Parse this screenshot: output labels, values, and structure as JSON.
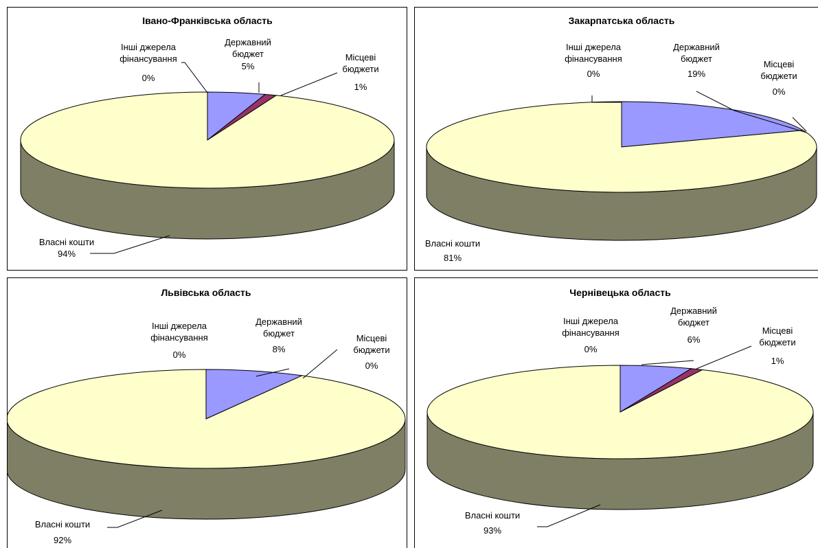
{
  "chart_data": [
    {
      "type": "pie",
      "title": "Івано-Франківська область",
      "slices": [
        {
          "name": "Державний бюджет",
          "value": 5,
          "label": "5%"
        },
        {
          "name": "Місцеві бюджети",
          "value": 1,
          "label": "1%"
        },
        {
          "name": "Власні кошти",
          "value": 94,
          "label": "94%"
        },
        {
          "name": "Інші джерела фінансування",
          "value": 0,
          "label": "0%"
        }
      ]
    },
    {
      "type": "pie",
      "title": "Закарпатська область",
      "slices": [
        {
          "name": "Державний бюджет",
          "value": 19,
          "label": "19%"
        },
        {
          "name": "Місцеві бюджети",
          "value": 0,
          "label": "0%"
        },
        {
          "name": "Власні кошти",
          "value": 81,
          "label": "81%"
        },
        {
          "name": "Інші джерела фінансування",
          "value": 0,
          "label": "0%"
        }
      ]
    },
    {
      "type": "pie",
      "title": "Львівська область",
      "slices": [
        {
          "name": "Державний бюджет",
          "value": 8,
          "label": "8%"
        },
        {
          "name": "Місцеві бюджети",
          "value": 0,
          "label": "0%"
        },
        {
          "name": "Власні кошти",
          "value": 92,
          "label": "92%"
        },
        {
          "name": "Інші джерела фінансування",
          "value": 0,
          "label": "0%"
        }
      ]
    },
    {
      "type": "pie",
      "title": "Чернівецька область",
      "slices": [
        {
          "name": "Державний бюджет",
          "value": 6,
          "label": "6%"
        },
        {
          "name": "Місцеві бюджети",
          "value": 1,
          "label": "1%"
        },
        {
          "name": "Власні кошти",
          "value": 93,
          "label": "93%"
        },
        {
          "name": "Інші джерела фінансування",
          "value": 0,
          "label": "0%"
        }
      ]
    }
  ],
  "colors": {
    "state_budget": "#9999FF",
    "local_budgets": "#993366",
    "own_funds": "#FFFFCC",
    "own_funds_side": "#7F7F66",
    "other_sources": "#CCFFFF"
  },
  "labels": {
    "state_budget": [
      "Державний",
      "бюджет"
    ],
    "local_budgets": [
      "Місцеві",
      "бюджети"
    ],
    "own_funds": [
      "Власні кошти"
    ],
    "other_sources": [
      "Інші джерела",
      "фінансування"
    ]
  }
}
